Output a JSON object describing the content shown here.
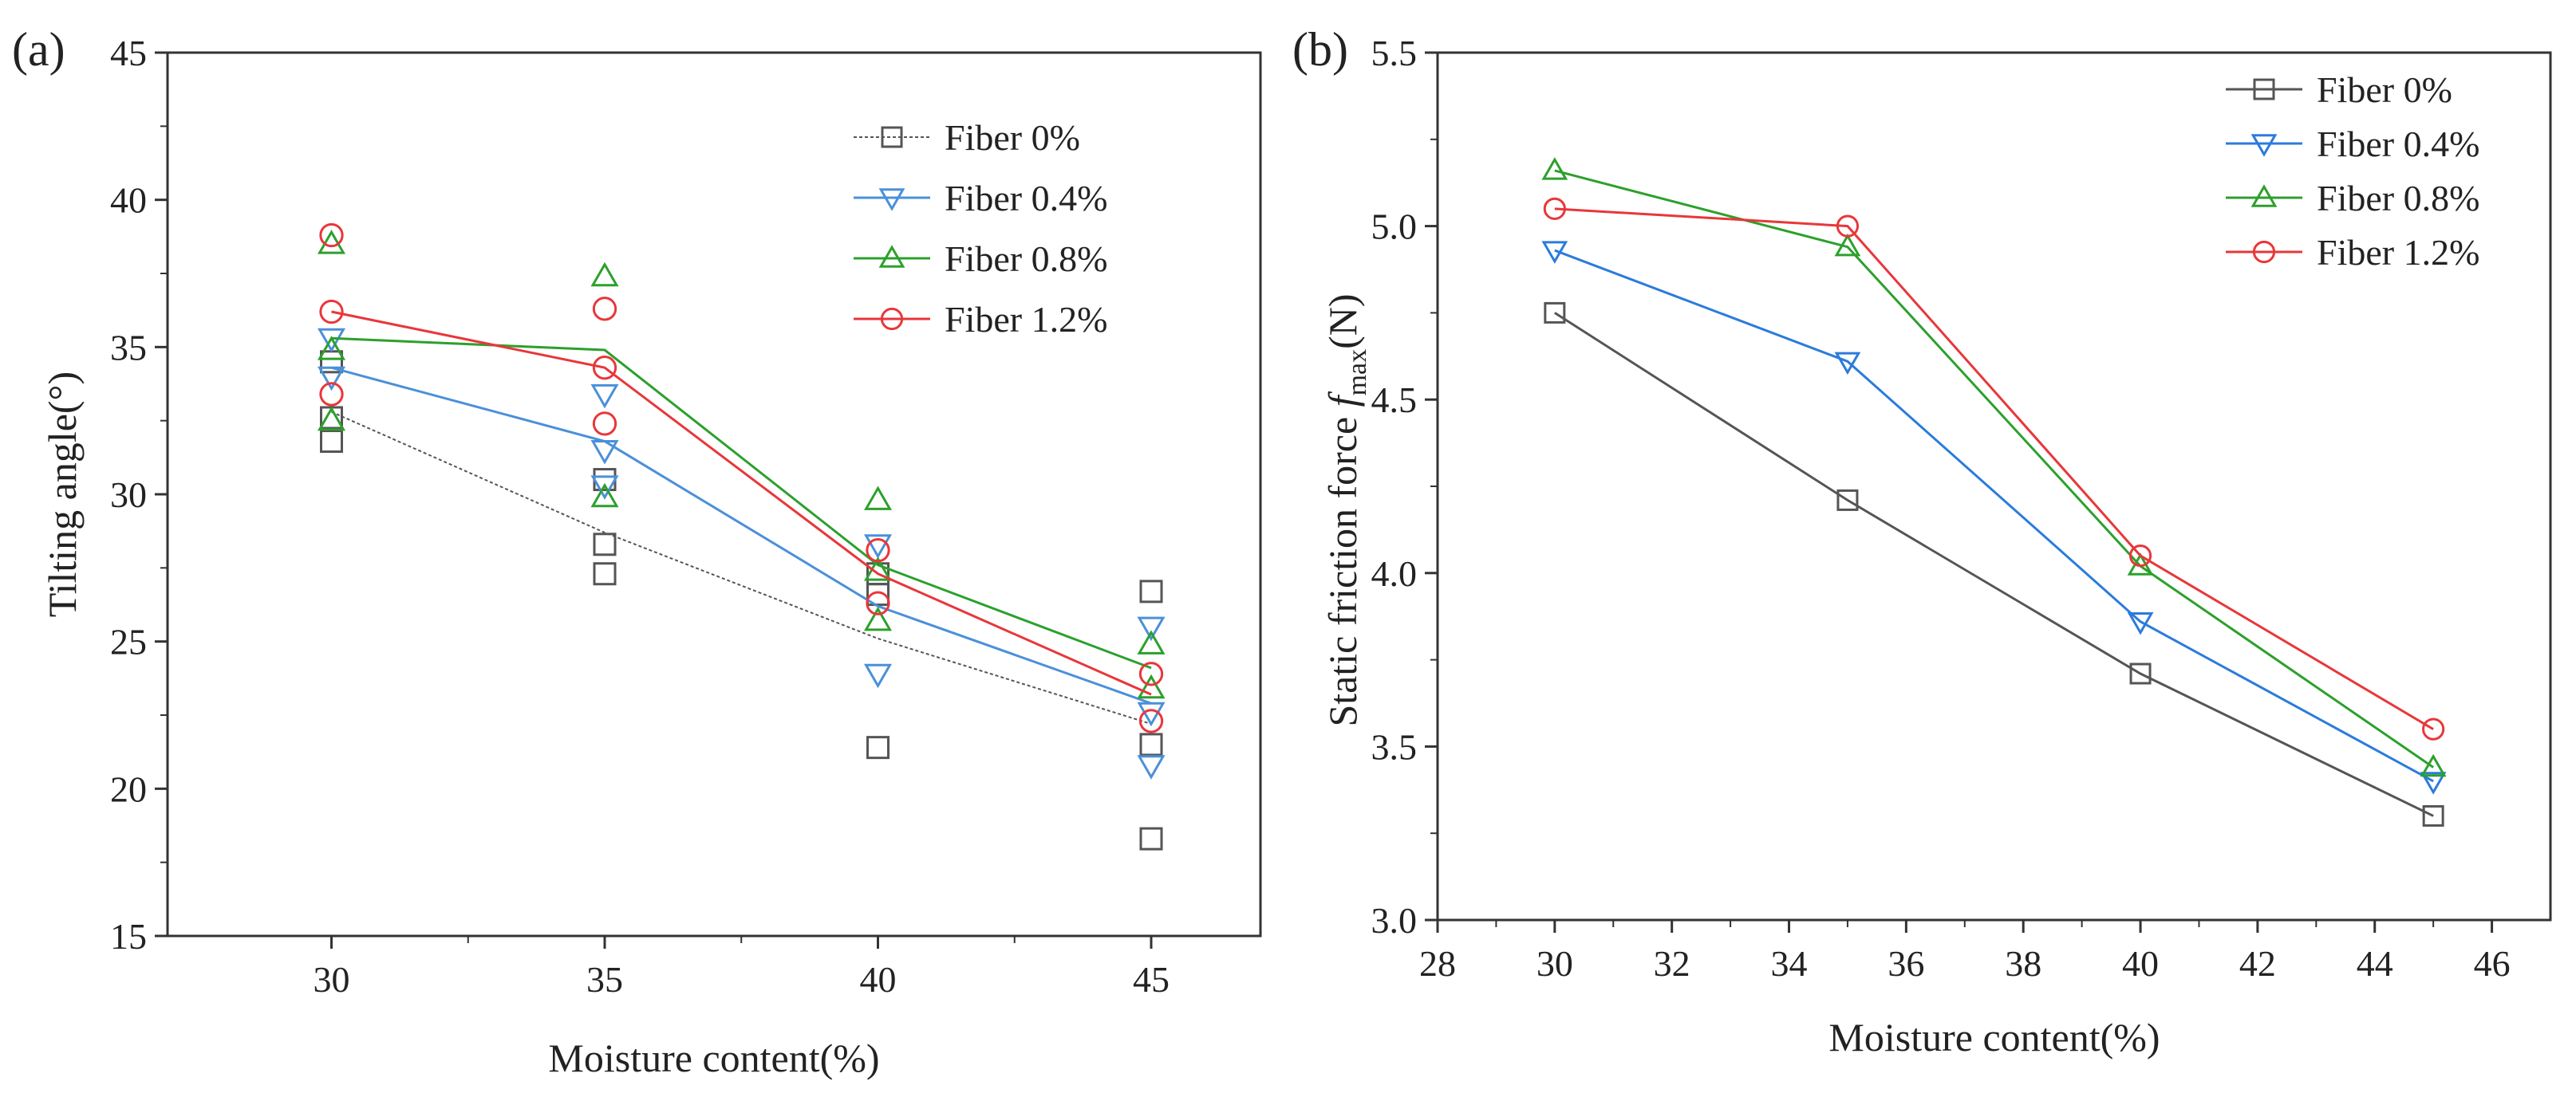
{
  "chart_data": [
    {
      "type": "scatter",
      "panel_label": "(a)",
      "title": "",
      "xlabel": "Moisture content(%)",
      "ylabel": "Tilting angle(°)",
      "xlim": [
        27,
        47
      ],
      "ylim": [
        15,
        45
      ],
      "xticks": [
        30,
        35,
        40,
        45
      ],
      "yticks": [
        15,
        20,
        25,
        30,
        35,
        40,
        45
      ],
      "legend_position": "top-right",
      "series": [
        {
          "name": "Fiber 0%",
          "color": "#555555",
          "marker": "square",
          "dashed": true,
          "points": [
            {
              "x": 30,
              "y": 31.8
            },
            {
              "x": 30,
              "y": 32.6
            },
            {
              "x": 30,
              "y": 34.5
            },
            {
              "x": 35,
              "y": 27.3
            },
            {
              "x": 35,
              "y": 28.3
            },
            {
              "x": 35,
              "y": 30.5
            },
            {
              "x": 40,
              "y": 21.4
            },
            {
              "x": 40,
              "y": 26.6
            },
            {
              "x": 40,
              "y": 27.3
            },
            {
              "x": 45,
              "y": 18.3
            },
            {
              "x": 45,
              "y": 21.5
            },
            {
              "x": 45,
              "y": 26.7
            }
          ],
          "trend": [
            {
              "x": 30,
              "y": 32.8
            },
            {
              "x": 35,
              "y": 28.7
            },
            {
              "x": 40,
              "y": 25.1
            },
            {
              "x": 45,
              "y": 22.2
            }
          ]
        },
        {
          "name": "Fiber 0.4%",
          "color": "#4a90d9",
          "marker": "triangle-down",
          "points": [
            {
              "x": 30,
              "y": 34.0
            },
            {
              "x": 30,
              "y": 35.3
            },
            {
              "x": 35,
              "y": 30.3
            },
            {
              "x": 35,
              "y": 31.5
            },
            {
              "x": 35,
              "y": 33.4
            },
            {
              "x": 40,
              "y": 23.9
            },
            {
              "x": 40,
              "y": 28.3
            },
            {
              "x": 45,
              "y": 20.8
            },
            {
              "x": 45,
              "y": 22.6
            },
            {
              "x": 45,
              "y": 25.5
            }
          ],
          "trend": [
            {
              "x": 30,
              "y": 34.3
            },
            {
              "x": 35,
              "y": 31.8
            },
            {
              "x": 40,
              "y": 26.2
            },
            {
              "x": 45,
              "y": 22.9
            }
          ]
        },
        {
          "name": "Fiber 0.8%",
          "color": "#2ca02c",
          "marker": "triangle-up",
          "points": [
            {
              "x": 30,
              "y": 32.5
            },
            {
              "x": 30,
              "y": 34.9
            },
            {
              "x": 30,
              "y": 38.5
            },
            {
              "x": 35,
              "y": 29.9
            },
            {
              "x": 35,
              "y": 37.4
            },
            {
              "x": 40,
              "y": 25.7
            },
            {
              "x": 40,
              "y": 27.4
            },
            {
              "x": 40,
              "y": 29.8
            },
            {
              "x": 45,
              "y": 23.4
            },
            {
              "x": 45,
              "y": 24.9
            }
          ],
          "trend": [
            {
              "x": 30,
              "y": 35.3
            },
            {
              "x": 35,
              "y": 34.9
            },
            {
              "x": 40,
              "y": 27.6
            },
            {
              "x": 45,
              "y": 24.1
            }
          ]
        },
        {
          "name": "Fiber 1.2%",
          "color": "#e8373a",
          "marker": "circle",
          "points": [
            {
              "x": 30,
              "y": 33.4
            },
            {
              "x": 30,
              "y": 36.2
            },
            {
              "x": 30,
              "y": 38.8
            },
            {
              "x": 35,
              "y": 32.4
            },
            {
              "x": 35,
              "y": 34.3
            },
            {
              "x": 35,
              "y": 36.3
            },
            {
              "x": 40,
              "y": 26.3
            },
            {
              "x": 40,
              "y": 28.1
            },
            {
              "x": 45,
              "y": 22.3
            },
            {
              "x": 45,
              "y": 23.9
            }
          ],
          "trend": [
            {
              "x": 30,
              "y": 36.2
            },
            {
              "x": 35,
              "y": 34.3
            },
            {
              "x": 40,
              "y": 27.3
            },
            {
              "x": 45,
              "y": 23.2
            }
          ]
        }
      ]
    },
    {
      "type": "line",
      "panel_label": "(b)",
      "title": "",
      "xlabel": "Moisture content(%)",
      "ylabel": "Static friction force ",
      "ylabel_italic": "f",
      "ylabel_sub": "max",
      "ylabel_unit": "(N)",
      "xlim": [
        28,
        47
      ],
      "ylim": [
        3.0,
        5.5
      ],
      "xticks": [
        28,
        30,
        32,
        34,
        36,
        38,
        40,
        42,
        44,
        46
      ],
      "yticks": [
        3.0,
        3.5,
        4.0,
        4.5,
        5.0,
        5.5
      ],
      "legend_position": "top-right",
      "x": [
        30,
        35,
        40,
        45
      ],
      "series": [
        {
          "name": "Fiber 0%",
          "color": "#555555",
          "marker": "square",
          "values": [
            4.75,
            4.21,
            3.71,
            3.3
          ]
        },
        {
          "name": "Fiber 0.4%",
          "color": "#2b7bdc",
          "marker": "triangle-down",
          "values": [
            4.93,
            4.61,
            3.86,
            3.4
          ]
        },
        {
          "name": "Fiber 0.8%",
          "color": "#2ca02c",
          "marker": "triangle-up",
          "values": [
            5.16,
            4.94,
            4.02,
            3.44
          ]
        },
        {
          "name": "Fiber 1.2%",
          "color": "#e8373a",
          "marker": "circle",
          "values": [
            5.05,
            5.0,
            4.05,
            3.55
          ]
        }
      ]
    }
  ]
}
